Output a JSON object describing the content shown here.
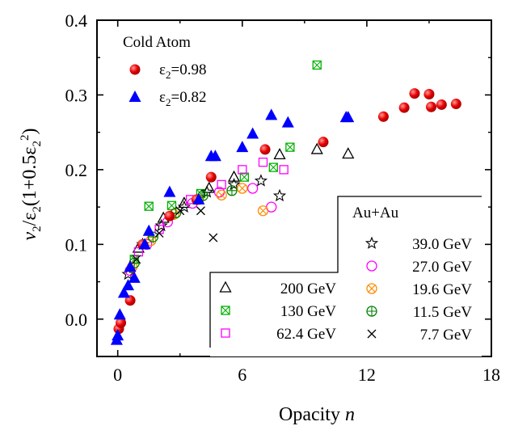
{
  "chart_data": {
    "type": "scatter",
    "xlabel_text": "Opacity ",
    "xlabel_var": "n",
    "ylabel": "v2/ε2(1+0.5ε2^2)",
    "xlim": [
      -1,
      18
    ],
    "ylim": [
      -0.05,
      0.4
    ],
    "xticks": [
      "0",
      "6",
      "12",
      "18"
    ],
    "yticks": [
      "0.0",
      "0.1",
      "0.2",
      "0.3",
      "0.4"
    ],
    "legend_cold": {
      "title": "Cold Atom",
      "entries": [
        "ε2=0.98",
        "ε2=0.82"
      ]
    },
    "legend_auau": {
      "title": "Au+Au",
      "left": [
        "200 GeV",
        "130 GeV",
        "62.4 GeV"
      ],
      "right": [
        "39.0 GeV",
        "27.0 GeV",
        "19.6 GeV",
        "11.5 GeV",
        "7.7 GeV"
      ]
    },
    "series": [
      {
        "name": "ε2=0.98",
        "marker": "circle-red",
        "color": "#e00000",
        "points": [
          [
            0.05,
            -0.013
          ],
          [
            0.15,
            -0.005
          ],
          [
            0.6,
            0.025
          ],
          [
            1.2,
            0.1
          ],
          [
            2.5,
            0.138
          ],
          [
            3.8,
            0.16
          ],
          [
            4.5,
            0.19
          ],
          [
            7.1,
            0.227
          ],
          [
            9.9,
            0.237
          ],
          [
            12.8,
            0.271
          ],
          [
            13.8,
            0.283
          ],
          [
            14.3,
            0.302
          ],
          [
            15.0,
            0.301
          ],
          [
            15.1,
            0.284
          ],
          [
            15.6,
            0.287
          ],
          [
            16.3,
            0.288
          ]
        ]
      },
      {
        "name": "ε2=0.82",
        "marker": "triangle-blue",
        "color": "#0000ff",
        "points": [
          [
            -0.05,
            -0.028
          ],
          [
            0,
            -0.022
          ],
          [
            0.1,
            0.006
          ],
          [
            0.3,
            0.035
          ],
          [
            0.5,
            0.045
          ],
          [
            0.6,
            0.07
          ],
          [
            0.8,
            0.055
          ],
          [
            1.3,
            0.1
          ],
          [
            1.5,
            0.118
          ],
          [
            2.5,
            0.17
          ],
          [
            3.9,
            0.16
          ],
          [
            4.5,
            0.218
          ],
          [
            4.7,
            0.218
          ],
          [
            6.0,
            0.23
          ],
          [
            6.5,
            0.248
          ],
          [
            7.4,
            0.273
          ],
          [
            8.2,
            0.263
          ],
          [
            11.0,
            0.27
          ],
          [
            11.1,
            0.27
          ]
        ]
      },
      {
        "name": "200 GeV",
        "marker": "triangle-open-black",
        "color": "#000000",
        "points": [
          [
            1.0,
            0.095
          ],
          [
            2.2,
            0.135
          ],
          [
            3.2,
            0.155
          ],
          [
            4.4,
            0.175
          ],
          [
            5.6,
            0.19
          ],
          [
            7.8,
            0.22
          ],
          [
            9.6,
            0.227
          ],
          [
            11.1,
            0.221
          ]
        ]
      },
      {
        "name": "130 GeV",
        "marker": "square-x-green",
        "color": "#00b000",
        "points": [
          [
            0.8,
            0.08
          ],
          [
            1.5,
            0.151
          ],
          [
            2.6,
            0.152
          ],
          [
            4.0,
            0.168
          ],
          [
            6.1,
            0.19
          ],
          [
            7.5,
            0.203
          ],
          [
            8.3,
            0.23
          ],
          [
            9.6,
            0.34
          ]
        ]
      },
      {
        "name": "62.4 GeV",
        "marker": "square-open-magenta",
        "color": "#ff00ff",
        "points": [
          [
            1.0,
            0.09
          ],
          [
            2.0,
            0.12
          ],
          [
            3.5,
            0.16
          ],
          [
            5.0,
            0.18
          ],
          [
            6.0,
            0.2
          ],
          [
            7.0,
            0.21
          ],
          [
            8.0,
            0.2
          ]
        ]
      },
      {
        "name": "39.0 GeV",
        "marker": "star-open-black",
        "color": "#000000",
        "points": [
          [
            0.5,
            0.06
          ],
          [
            1.2,
            0.1
          ],
          [
            2.1,
            0.125
          ],
          [
            3.2,
            0.15
          ],
          [
            4.3,
            0.17
          ],
          [
            5.6,
            0.18
          ],
          [
            6.9,
            0.185
          ],
          [
            7.8,
            0.165
          ]
        ]
      },
      {
        "name": "27.0 GeV",
        "marker": "circle-open-magenta",
        "color": "#ff00ff",
        "points": [
          [
            0.6,
            0.065
          ],
          [
            1.4,
            0.1
          ],
          [
            2.4,
            0.13
          ],
          [
            3.6,
            0.155
          ],
          [
            4.9,
            0.17
          ],
          [
            6.5,
            0.175
          ],
          [
            7.4,
            0.15
          ]
        ]
      },
      {
        "name": "19.6 GeV",
        "marker": "circle-x-orange",
        "color": "#ff8c00",
        "points": [
          [
            0.7,
            0.07
          ],
          [
            1.6,
            0.105
          ],
          [
            2.7,
            0.14
          ],
          [
            3.9,
            0.16
          ],
          [
            5.0,
            0.166
          ],
          [
            6.0,
            0.175
          ],
          [
            7.0,
            0.145
          ]
        ]
      },
      {
        "name": "11.5 GeV",
        "marker": "circle-plus-green",
        "color": "#008000",
        "points": [
          [
            0.8,
            0.075
          ],
          [
            1.7,
            0.11
          ],
          [
            2.8,
            0.142
          ],
          [
            4.1,
            0.165
          ],
          [
            5.5,
            0.172
          ]
        ]
      },
      {
        "name": "7.7 GeV",
        "marker": "x-black",
        "color": "#000000",
        "points": [
          [
            0.9,
            0.08
          ],
          [
            2.0,
            0.115
          ],
          [
            3.0,
            0.145
          ],
          [
            4.0,
            0.145
          ],
          [
            4.6,
            0.109
          ]
        ]
      }
    ]
  }
}
